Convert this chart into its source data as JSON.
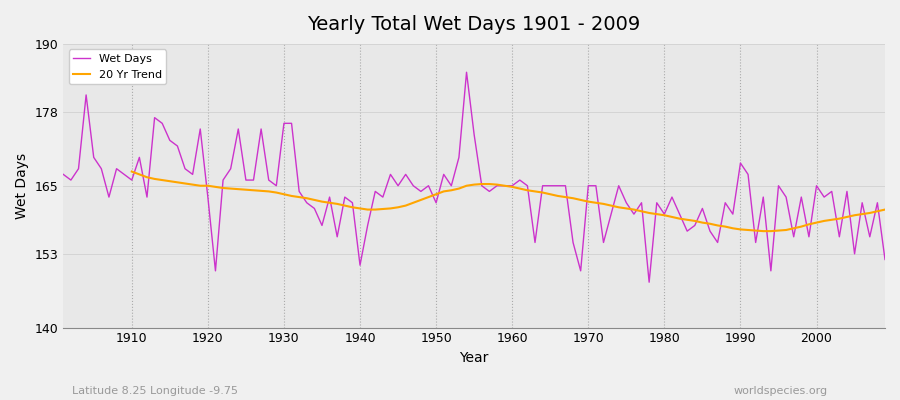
{
  "title": "Yearly Total Wet Days 1901 - 2009",
  "xlabel": "Year",
  "ylabel": "Wet Days",
  "subtitle_left": "Latitude 8.25 Longitude -9.75",
  "subtitle_right": "worldspecies.org",
  "legend_wet": "Wet Days",
  "legend_trend": "20 Yr Trend",
  "wet_color": "#cc33cc",
  "trend_color": "#ffa500",
  "fig_bg_color": "#f0f0f0",
  "plot_bg_color": "#e8e8e8",
  "ylim": [
    140,
    190
  ],
  "yticks": [
    140,
    153,
    165,
    178,
    190
  ],
  "xticks": [
    1910,
    1920,
    1930,
    1940,
    1950,
    1960,
    1970,
    1980,
    1990,
    2000
  ],
  "xlim": [
    1901,
    2009
  ],
  "years": [
    1901,
    1902,
    1903,
    1904,
    1905,
    1906,
    1907,
    1908,
    1909,
    1910,
    1911,
    1912,
    1913,
    1914,
    1915,
    1916,
    1917,
    1918,
    1919,
    1920,
    1921,
    1922,
    1923,
    1924,
    1925,
    1926,
    1927,
    1928,
    1929,
    1930,
    1931,
    1932,
    1933,
    1934,
    1935,
    1936,
    1937,
    1938,
    1939,
    1940,
    1941,
    1942,
    1943,
    1944,
    1945,
    1946,
    1947,
    1948,
    1949,
    1950,
    1951,
    1952,
    1953,
    1954,
    1955,
    1956,
    1957,
    1958,
    1959,
    1960,
    1961,
    1962,
    1963,
    1964,
    1965,
    1966,
    1967,
    1968,
    1969,
    1970,
    1971,
    1972,
    1973,
    1974,
    1975,
    1976,
    1977,
    1978,
    1979,
    1980,
    1981,
    1982,
    1983,
    1984,
    1985,
    1986,
    1987,
    1988,
    1989,
    1990,
    1991,
    1992,
    1993,
    1994,
    1995,
    1996,
    1997,
    1998,
    1999,
    2000,
    2001,
    2002,
    2003,
    2004,
    2005,
    2006,
    2007,
    2008,
    2009
  ],
  "wet_days": [
    167,
    166,
    168,
    181,
    170,
    168,
    163,
    168,
    167,
    166,
    170,
    163,
    177,
    176,
    173,
    172,
    168,
    167,
    175,
    163,
    150,
    166,
    168,
    175,
    166,
    166,
    175,
    166,
    165,
    176,
    176,
    164,
    162,
    161,
    158,
    163,
    156,
    163,
    162,
    151,
    158,
    164,
    163,
    167,
    165,
    167,
    165,
    164,
    165,
    162,
    167,
    165,
    170,
    185,
    174,
    165,
    164,
    165,
    165,
    165,
    166,
    165,
    155,
    165,
    165,
    165,
    165,
    155,
    150,
    165,
    165,
    155,
    160,
    165,
    162,
    160,
    162,
    148,
    162,
    160,
    163,
    160,
    157,
    158,
    161,
    157,
    155,
    162,
    160,
    169,
    167,
    155,
    163,
    150,
    165,
    163,
    156,
    163,
    156,
    165,
    163,
    164,
    156,
    164,
    153,
    162,
    156,
    162,
    152
  ],
  "trend_years": [
    1910,
    1911,
    1912,
    1913,
    1914,
    1915,
    1916,
    1917,
    1918,
    1919,
    1920,
    1921,
    1922,
    1923,
    1924,
    1925,
    1926,
    1927,
    1928,
    1929,
    1930,
    1931,
    1932,
    1933,
    1934,
    1935,
    1936,
    1937,
    1938,
    1939,
    1940,
    1941,
    1942,
    1943,
    1944,
    1945,
    1946,
    1947,
    1948,
    1949,
    1950,
    1951,
    1952,
    1953,
    1954,
    1955,
    1956,
    1957,
    1958,
    1959,
    1960,
    1961,
    1962,
    1963,
    1964,
    1965,
    1966,
    1967,
    1968,
    1969,
    1970,
    1971,
    1972,
    1973,
    1974,
    1975,
    1976,
    1977,
    1978,
    1979,
    1980,
    1981,
    1982,
    1983,
    1984,
    1985,
    1986,
    1987,
    1988,
    1989,
    1990,
    1991,
    1992,
    1993,
    1994,
    1995,
    1996,
    1997,
    1998,
    1999,
    2000,
    2001,
    2002,
    2003,
    2004,
    2005,
    2006,
    2007,
    2008,
    2009
  ],
  "trend_vals": [
    167.5,
    167.0,
    166.5,
    166.2,
    166.0,
    165.8,
    165.6,
    165.4,
    165.2,
    165.0,
    165.0,
    164.8,
    164.6,
    164.5,
    164.4,
    164.3,
    164.2,
    164.1,
    164.0,
    163.8,
    163.5,
    163.2,
    163.0,
    162.8,
    162.5,
    162.2,
    162.0,
    161.8,
    161.5,
    161.2,
    161.0,
    160.8,
    160.8,
    160.9,
    161.0,
    161.2,
    161.5,
    162.0,
    162.5,
    163.0,
    163.5,
    164.0,
    164.2,
    164.5,
    165.0,
    165.2,
    165.3,
    165.3,
    165.2,
    165.0,
    164.8,
    164.5,
    164.2,
    164.0,
    163.8,
    163.5,
    163.2,
    163.0,
    162.8,
    162.5,
    162.2,
    162.0,
    161.8,
    161.5,
    161.2,
    161.0,
    160.8,
    160.5,
    160.2,
    160.0,
    159.8,
    159.5,
    159.2,
    159.0,
    158.8,
    158.5,
    158.3,
    158.0,
    157.8,
    157.5,
    157.3,
    157.2,
    157.1,
    157.0,
    157.0,
    157.1,
    157.2,
    157.5,
    157.8,
    158.2,
    158.5,
    158.8,
    159.0,
    159.2,
    159.5,
    159.8,
    160.0,
    160.2,
    160.5,
    160.8
  ]
}
